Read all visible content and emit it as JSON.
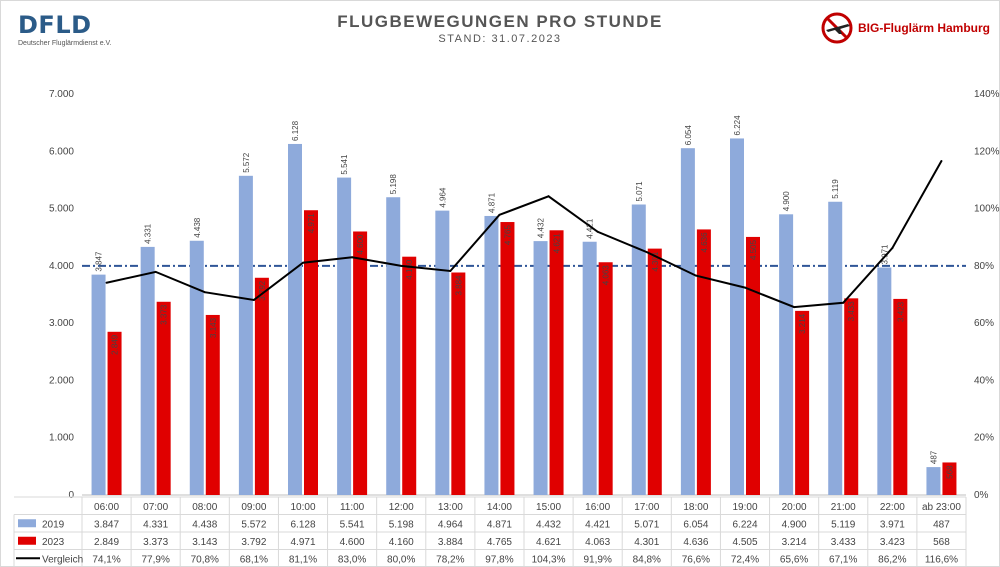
{
  "header": {
    "logo_left": "DFLD",
    "logo_left_sub": "Deutscher Fluglärmdienst e.V.",
    "title": "FLUGBEWEGUNGEN PRO STUNDE",
    "subtitle": "STAND: 31.07.2023",
    "logo_right": "BIG-Fluglärm Hamburg"
  },
  "colors": {
    "series_2019": "#8eaadb",
    "series_2023": "#e00000",
    "line": "#000000",
    "reference": "#2f5597"
  },
  "chart_data": {
    "type": "bar",
    "categories": [
      "06:00",
      "07:00",
      "08:00",
      "09:00",
      "10:00",
      "11:00",
      "12:00",
      "13:00",
      "14:00",
      "15:00",
      "16:00",
      "17:00",
      "18:00",
      "19:00",
      "20:00",
      "21:00",
      "22:00",
      "ab 23:00"
    ],
    "series": [
      {
        "name": "2019",
        "values": [
          3847,
          4331,
          4438,
          5572,
          6128,
          5541,
          5198,
          4964,
          4871,
          4432,
          4421,
          5071,
          6054,
          6224,
          4900,
          5119,
          3971,
          487
        ],
        "labels": [
          "3.847",
          "4.331",
          "4.438",
          "5.572",
          "6.128",
          "5.541",
          "5.198",
          "4.964",
          "4.871",
          "4.432",
          "4.421",
          "5.071",
          "6.054",
          "6.224",
          "4.900",
          "5.119",
          "3.971",
          "487"
        ]
      },
      {
        "name": "2023",
        "values": [
          2849,
          3373,
          3143,
          3792,
          4971,
          4600,
          4160,
          3884,
          4765,
          4621,
          4063,
          4301,
          4636,
          4505,
          3214,
          3433,
          3423,
          568
        ],
        "labels": [
          "2.849",
          "3.373",
          "3.143",
          "3.792",
          "4.971",
          "4.600",
          "4.160",
          "3.884",
          "4.765",
          "4.621",
          "4.063",
          "4.301",
          "4.636",
          "4.505",
          "3.214",
          "3.433",
          "3.423",
          "568"
        ]
      },
      {
        "name": "Vergleich",
        "type": "line",
        "axis": "right",
        "values": [
          74.1,
          77.9,
          70.8,
          68.1,
          81.1,
          83.0,
          80.0,
          78.2,
          97.8,
          104.3,
          91.9,
          84.8,
          76.6,
          72.4,
          65.6,
          67.1,
          86.2,
          116.6
        ],
        "labels": [
          "74,1%",
          "77,9%",
          "70,8%",
          "68,1%",
          "81,1%",
          "83,0%",
          "80,0%",
          "78,2%",
          "97,8%",
          "104,3%",
          "91,9%",
          "84,8%",
          "76,6%",
          "72,4%",
          "65,6%",
          "67,1%",
          "86,2%",
          "116,6%"
        ]
      }
    ],
    "ylim": [
      0,
      7000
    ],
    "yticks": [
      "0",
      "1.000",
      "2.000",
      "3.000",
      "4.000",
      "5.000",
      "6.000",
      "7.000"
    ],
    "y2lim": [
      0,
      140
    ],
    "y2ticks": [
      "0%",
      "20%",
      "40%",
      "60%",
      "80%",
      "100%",
      "120%",
      "140%"
    ],
    "reference_line": {
      "value": 80,
      "axis": "right",
      "style": "dash-dot"
    },
    "legend": "table-below",
    "grid": false
  }
}
